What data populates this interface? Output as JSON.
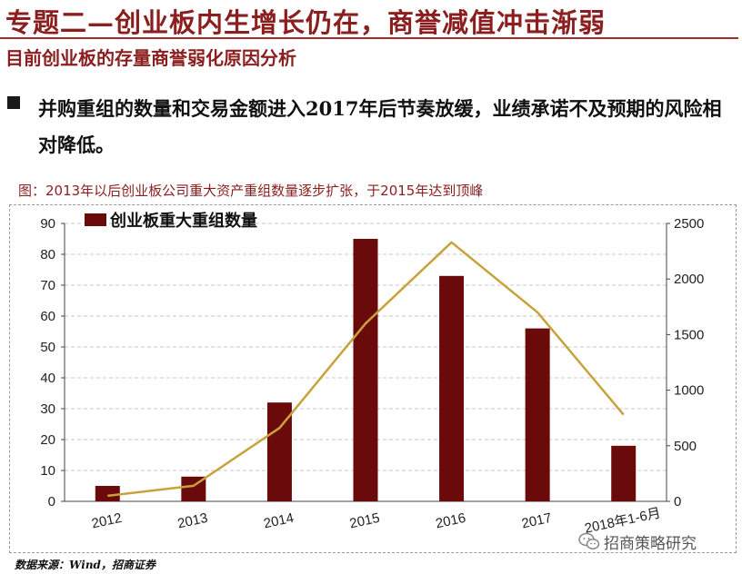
{
  "header": {
    "title": "专题二—创业板内生增长仍在，商誉减值冲击渐弱",
    "subtitle": "目前创业板的存量商誉弱化原因分析"
  },
  "bullet": {
    "text": "并购重组的数量和交易金额进入2017年后节奏放缓，业绩承诺不及预期的风险相对降低。"
  },
  "figure": {
    "caption": "图：2013年以后创业板公司重大资产重组数量逐步扩张，于2015年达到顶峰"
  },
  "chart_data": {
    "type": "bar",
    "categories": [
      "2012",
      "2013",
      "2014",
      "2015",
      "2016",
      "2017",
      "2018年1-6月"
    ],
    "series": [
      {
        "name": "创业板重大重组数量",
        "type": "bar",
        "axis": "left",
        "values": [
          5,
          8,
          32,
          85,
          73,
          56,
          18
        ]
      },
      {
        "type": "line",
        "axis": "right",
        "values": [
          50,
          140,
          660,
          1600,
          2330,
          1700,
          780
        ]
      }
    ],
    "y_left": {
      "min": 0,
      "max": 90,
      "ticks": [
        0,
        10,
        20,
        30,
        40,
        50,
        60,
        70,
        80,
        90
      ]
    },
    "y_right": {
      "min": 0,
      "max": 2500,
      "ticks": [
        0,
        500,
        1000,
        1500,
        2000,
        2500
      ]
    },
    "grid": true,
    "legend": "top-left",
    "colors": {
      "bar": "#6b0a0a",
      "line": "#c8a23a"
    }
  },
  "source": {
    "text": "数据来源：Wind，招商证券"
  },
  "watermark": {
    "text": "招商策略研究",
    "icon": "wechat-icon"
  }
}
